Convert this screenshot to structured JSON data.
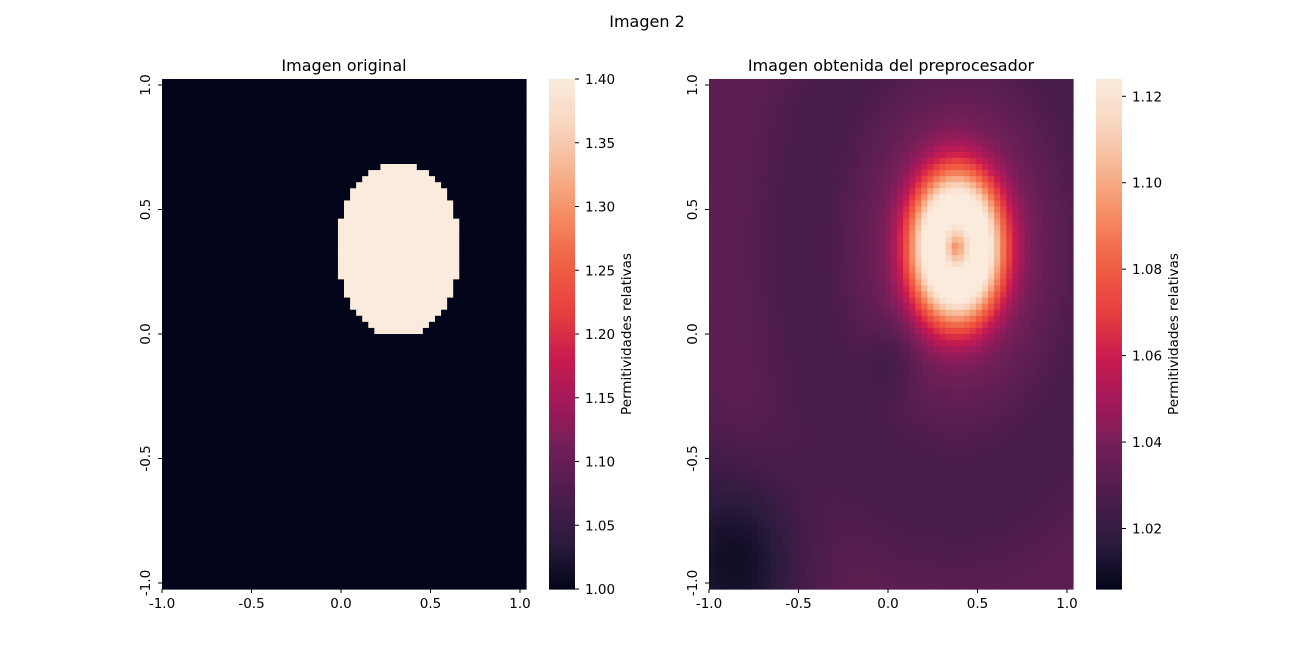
{
  "figure": {
    "suptitle": "Imagen 2"
  },
  "chart_data": [
    {
      "type": "heatmap",
      "title": "Imagen original",
      "xlabel": "",
      "ylabel": "",
      "xlim": [
        -1.0,
        1.0
      ],
      "ylim": [
        -1.0,
        1.0
      ],
      "x_ticks": [
        "-1.0",
        "-0.5",
        "0.0",
        "0.5",
        "1.0"
      ],
      "x_tick_values": [
        -1.0,
        -0.5,
        0.0,
        0.5,
        1.0
      ],
      "y_ticks": [
        "-1.0",
        "-0.5",
        "0.0",
        "0.5",
        "1.0"
      ],
      "y_tick_values": [
        -1.0,
        -0.5,
        0.0,
        0.5,
        1.0
      ],
      "colorbar": {
        "label": "Permitividades relativas",
        "vmin": 1.0,
        "vmax": 1.4,
        "ticks": [
          "1.00",
          "1.05",
          "1.10",
          "1.15",
          "1.20",
          "1.25",
          "1.30",
          "1.35",
          "1.40"
        ],
        "tick_values": [
          1.0,
          1.05,
          1.1,
          1.15,
          1.2,
          1.25,
          1.3,
          1.35,
          1.4
        ]
      },
      "grid": [
        60,
        84
      ],
      "inclusion": {
        "shape": "ellipse",
        "center": [
          0.3,
          0.33
        ],
        "radius_x": 0.34,
        "radius_y": 0.34,
        "value": 1.4
      },
      "background_value": 1.0,
      "grid_on": false
    },
    {
      "type": "heatmap",
      "title": "Imagen obtenida del preprocesador",
      "xlabel": "",
      "ylabel": "",
      "xlim": [
        -1.0,
        1.0
      ],
      "ylim": [
        -1.0,
        1.0
      ],
      "x_ticks": [
        "-1.0",
        "-0.5",
        "0.0",
        "0.5",
        "1.0"
      ],
      "x_tick_values": [
        -1.0,
        -0.5,
        0.0,
        0.5,
        1.0
      ],
      "y_ticks": [
        "-1.0",
        "-0.5",
        "0.0",
        "0.5",
        "1.0"
      ],
      "y_tick_values": [
        -1.0,
        -0.5,
        0.0,
        0.5,
        1.0
      ],
      "colorbar": {
        "label": "Permitividades relativas",
        "vmin": 1.006,
        "vmax": 1.124,
        "ticks": [
          "1.02",
          "1.04",
          "1.06",
          "1.08",
          "1.10",
          "1.12"
        ],
        "tick_values": [
          1.02,
          1.04,
          1.06,
          1.08,
          1.1,
          1.12
        ]
      },
      "grid": [
        60,
        84
      ],
      "peak": {
        "center": [
          0.36,
          0.34
        ],
        "value": 1.124,
        "ring_value": 1.12,
        "halo_value": 1.04
      },
      "min_region": {
        "center": [
          -0.8,
          -0.85
        ],
        "value": 1.006
      },
      "grid_on": false
    }
  ],
  "colormap": {
    "name": "rocket",
    "stops": [
      "#03051a",
      "#2b1b3d",
      "#4c1d4b",
      "#701f57",
      "#a11a5b",
      "#cb1b4f",
      "#e83f3f",
      "#f06043",
      "#f58860",
      "#f6b48f",
      "#f9d6c0",
      "#faebdd"
    ]
  }
}
